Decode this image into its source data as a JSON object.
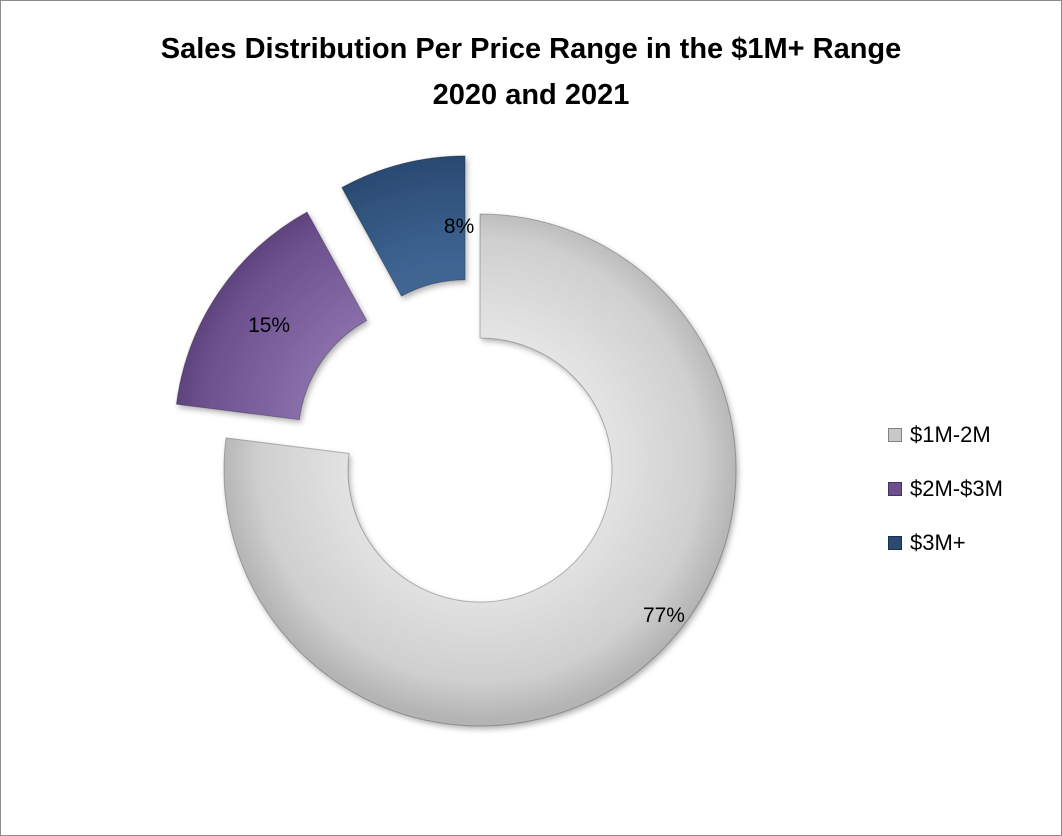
{
  "chart_data": {
    "type": "pie",
    "style": "exploded-doughnut",
    "title": "Sales Distribution Per Price Range in the $1M+ Range",
    "subtitle": "2020 and 2021",
    "categories": [
      "$1M-2M",
      "$2M-$3M",
      "$3M+"
    ],
    "values": [
      77,
      15,
      8
    ],
    "data_labels": [
      "77%",
      "15%",
      "8%"
    ],
    "colors": [
      "#c8c8c8",
      "#6c4f8d",
      "#2a4a72"
    ],
    "legend_position": "right"
  }
}
